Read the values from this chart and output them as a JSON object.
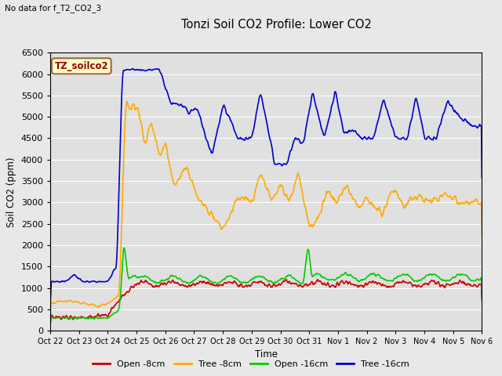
{
  "title": "Tonzi Soil CO2 Profile: Lower CO2",
  "no_data_text": "No data for f_T2_CO2_3",
  "ylabel": "Soil CO2 (ppm)",
  "xlabel": "Time",
  "ylim": [
    0,
    6500
  ],
  "fig_bg": "#e8e8e8",
  "plot_bg": "#e0e0e0",
  "grid_color": "#ffffff",
  "legend_label": "TZ_soilco2",
  "legend_box_color": "#ffffcc",
  "legend_box_edge": "#996633",
  "legend_text_color": "#990000",
  "x_tick_labels": [
    "Oct 22",
    "Oct 23",
    "Oct 24",
    "Oct 25",
    "Oct 26",
    "Oct 27",
    "Oct 28",
    "Oct 29",
    "Oct 30",
    "Oct 31",
    "Nov 1",
    "Nov 2",
    "Nov 3",
    "Nov 4",
    "Nov 5",
    "Nov 6"
  ],
  "series": {
    "open_8cm": {
      "color": "#cc0000",
      "label": "Open -8cm",
      "lw": 1.2
    },
    "tree_8cm": {
      "color": "#ffaa00",
      "label": "Tree -8cm",
      "lw": 1.2
    },
    "open_16cm": {
      "color": "#00cc00",
      "label": "Open -16cm",
      "lw": 1.2
    },
    "tree_16cm": {
      "color": "#0000cc",
      "label": "Tree -16cm",
      "lw": 1.2
    }
  }
}
